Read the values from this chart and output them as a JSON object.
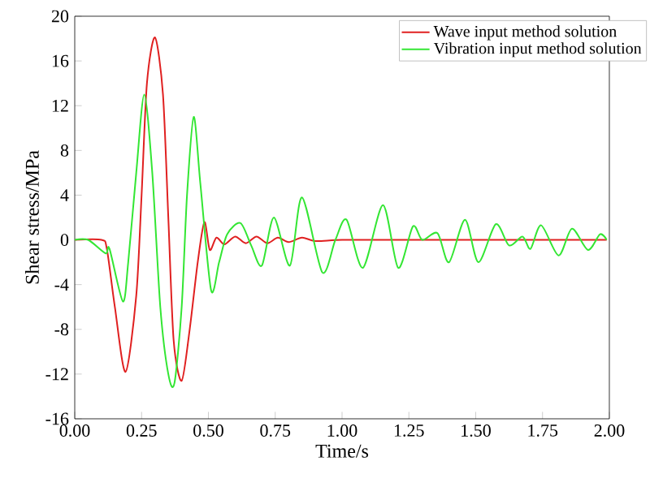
{
  "chart_data": {
    "type": "line",
    "xlabel": "Time/s",
    "ylabel": "Shear stress/MPa",
    "xlim": [
      0,
      2
    ],
    "ylim": [
      -16,
      20
    ],
    "xticks": [
      {
        "value": 0,
        "label": "0.00"
      },
      {
        "value": 0.25,
        "label": "0.25"
      },
      {
        "value": 0.5,
        "label": "0.50"
      },
      {
        "value": 0.75,
        "label": "0.75"
      },
      {
        "value": 1,
        "label": "1.00"
      },
      {
        "value": 1.25,
        "label": "1.25"
      },
      {
        "value": 1.5,
        "label": "1.50"
      },
      {
        "value": 1.75,
        "label": "1.75"
      },
      {
        "value": 2,
        "label": "2.00"
      }
    ],
    "yticks": [
      -16,
      -12,
      -8,
      -4,
      0,
      4,
      8,
      12,
      16,
      20
    ],
    "grid": false,
    "legend": "top right",
    "marker": "none",
    "line_style": "solid",
    "series": [
      {
        "name": "Wave input method solution",
        "color": "#e02020",
        "x": [
          0,
          0.1,
          0.12,
          0.15,
          0.19,
          0.23,
          0.25,
          0.27,
          0.3,
          0.33,
          0.35,
          0.37,
          0.4,
          0.43,
          0.46,
          0.485,
          0.505,
          0.53,
          0.56,
          0.6,
          0.64,
          0.68,
          0.72,
          0.76,
          0.8,
          0.85,
          0.9,
          1.0,
          1.2,
          1.5,
          1.8,
          1.99
        ],
        "values": [
          0,
          0,
          -0.8,
          -6,
          -11.8,
          -5,
          4,
          14,
          18.1,
          13,
          2,
          -9,
          -12.6,
          -8,
          -2,
          1.6,
          -0.9,
          0.2,
          -0.4,
          0.3,
          -0.3,
          0.3,
          -0.3,
          0.2,
          -0.2,
          0.2,
          -0.1,
          0,
          0,
          0,
          0,
          0
        ]
      },
      {
        "name": "Vibration input method solution",
        "color": "#33e633",
        "x": [
          0,
          0.05,
          0.115,
          0.13,
          0.18,
          0.2,
          0.23,
          0.26,
          0.29,
          0.32,
          0.35,
          0.373,
          0.4,
          0.42,
          0.445,
          0.47,
          0.51,
          0.54,
          0.57,
          0.62,
          0.66,
          0.7,
          0.745,
          0.805,
          0.85,
          0.926,
          0.975,
          1.017,
          1.078,
          1.153,
          1.21,
          1.265,
          1.3,
          1.357,
          1.4,
          1.46,
          1.51,
          1.575,
          1.625,
          1.675,
          1.705,
          1.745,
          1.81,
          1.86,
          1.92,
          1.965,
          1.99
        ],
        "values": [
          0,
          0,
          -1.2,
          -0.8,
          -5.5,
          -2,
          6,
          13,
          6,
          -6,
          -12,
          -12.8,
          -6,
          4,
          11,
          5,
          -4.5,
          -2,
          0.5,
          1.5,
          -0.5,
          -2.3,
          2,
          -2.3,
          3.8,
          -2.9,
          0,
          1.8,
          -2.5,
          3.1,
          -2.5,
          1.2,
          0,
          0.6,
          -2,
          1.8,
          -2,
          1.4,
          -0.5,
          0.3,
          -0.8,
          1.3,
          -1.4,
          1,
          -0.9,
          0.5,
          0
        ]
      }
    ]
  }
}
